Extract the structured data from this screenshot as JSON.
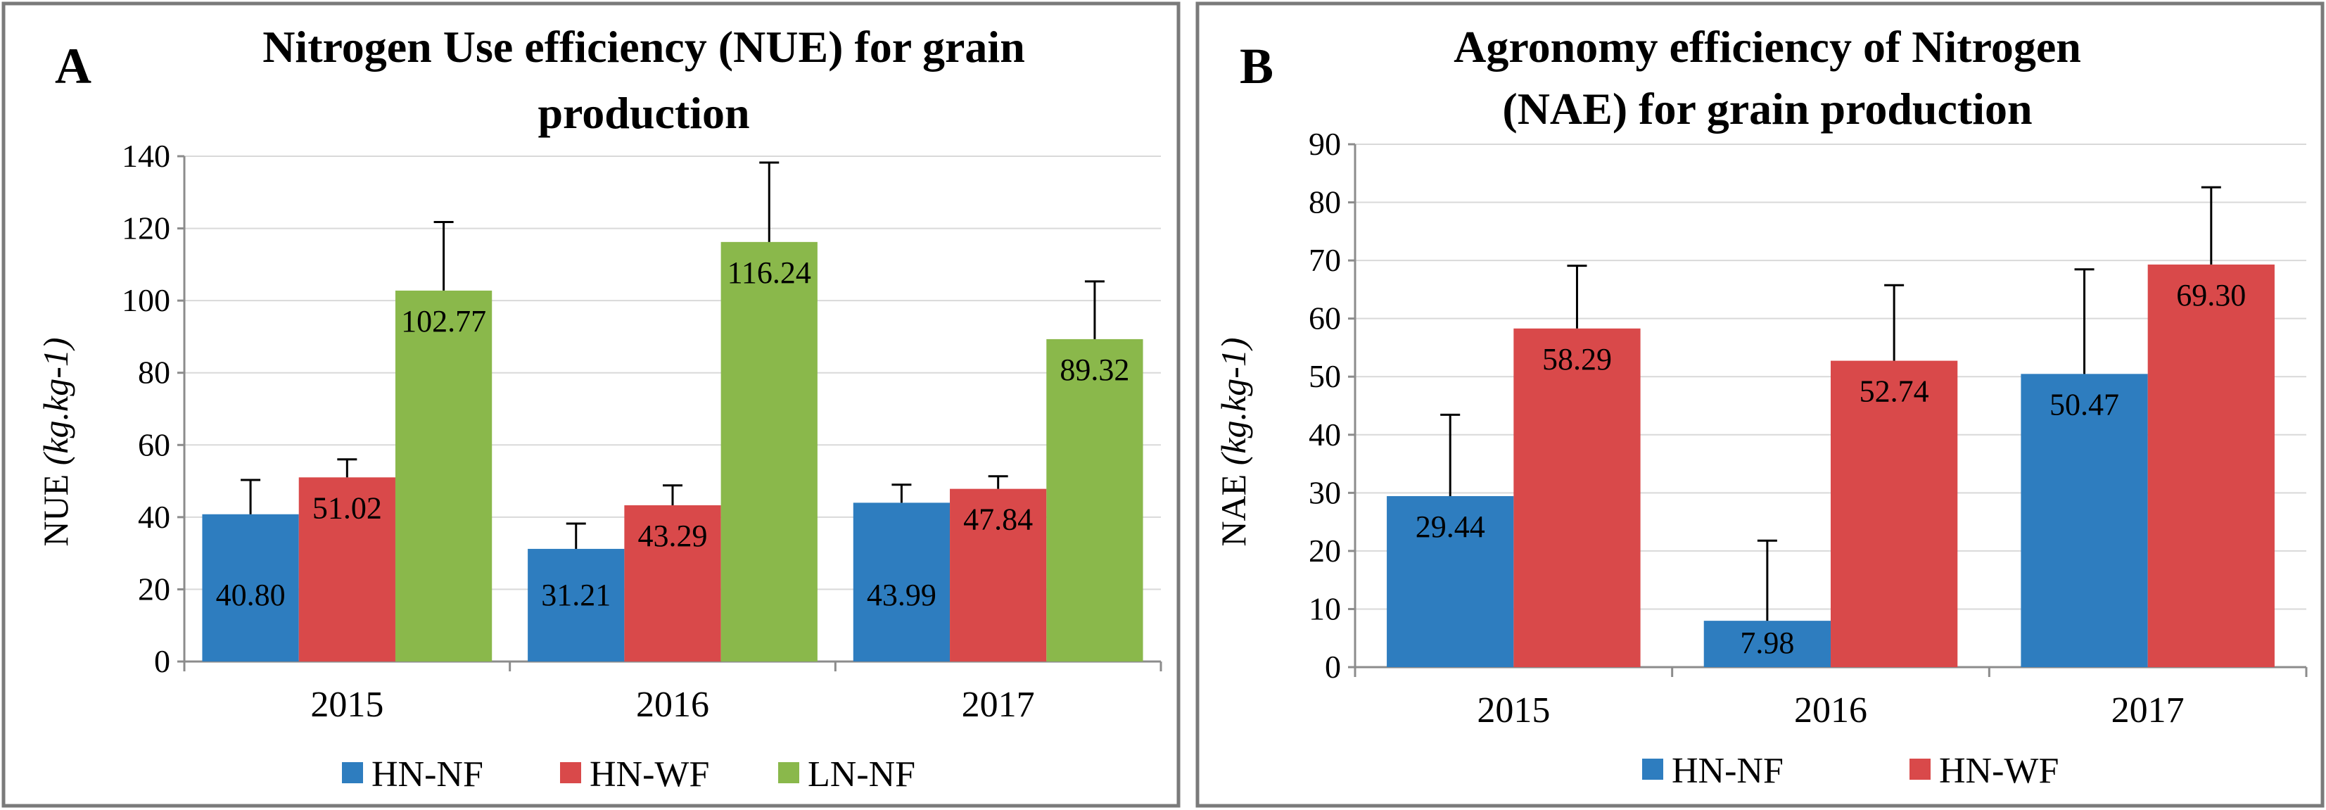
{
  "colors": {
    "HN-NF": "#2e7dbf",
    "HN-WF": "#d9494a",
    "LN-NF": "#8ab84b"
  },
  "chart_data": [
    {
      "type": "bar",
      "panel_label": "A",
      "title_lines": [
        "Nitrogen Use efficiency (NUE) for grain",
        "production"
      ],
      "ylabel": "NUE",
      "ylabel_unit": "(kg.kg-1)",
      "ylim": [
        0,
        140
      ],
      "yticks": [
        0,
        20,
        40,
        60,
        80,
        100,
        120,
        140
      ],
      "categories": [
        "2015",
        "2016",
        "2017"
      ],
      "series": [
        {
          "name": "HN-NF",
          "values": [
            40.8,
            31.21,
            43.99
          ],
          "errors": [
            9.5,
            7.0,
            5.0
          ],
          "labels": [
            "40.80",
            "31.21",
            "43.99"
          ]
        },
        {
          "name": "HN-WF",
          "values": [
            51.02,
            43.29,
            47.84
          ],
          "errors": [
            5.0,
            5.5,
            3.5
          ],
          "labels": [
            "51.02",
            "43.29",
            "47.84"
          ]
        },
        {
          "name": "LN-NF",
          "values": [
            102.77,
            116.24,
            89.32
          ],
          "errors": [
            19.0,
            22.0,
            16.0
          ],
          "labels": [
            "102.77",
            "116.24",
            "89.32"
          ]
        }
      ]
    },
    {
      "type": "bar",
      "panel_label": "B",
      "title_lines": [
        "Agronomy efficiency of Nitrogen",
        "(NAE) for grain production"
      ],
      "ylabel": "NAE",
      "ylabel_unit": "(kg.kg-1)",
      "ylim": [
        0,
        90
      ],
      "yticks": [
        0,
        10,
        20,
        30,
        40,
        50,
        60,
        70,
        80,
        90
      ],
      "categories": [
        "2015",
        "2016",
        "2017"
      ],
      "series": [
        {
          "name": "HN-NF",
          "values": [
            29.44,
            7.98,
            50.47
          ],
          "errors": [
            14.0,
            13.8,
            18.0
          ],
          "labels": [
            "29.44",
            "7.98",
            "50.47"
          ]
        },
        {
          "name": "HN-WF",
          "values": [
            58.29,
            52.74,
            69.3
          ],
          "errors": [
            10.8,
            13.0,
            13.3
          ],
          "labels": [
            "58.29",
            "52.74",
            "69.30"
          ]
        }
      ]
    }
  ]
}
